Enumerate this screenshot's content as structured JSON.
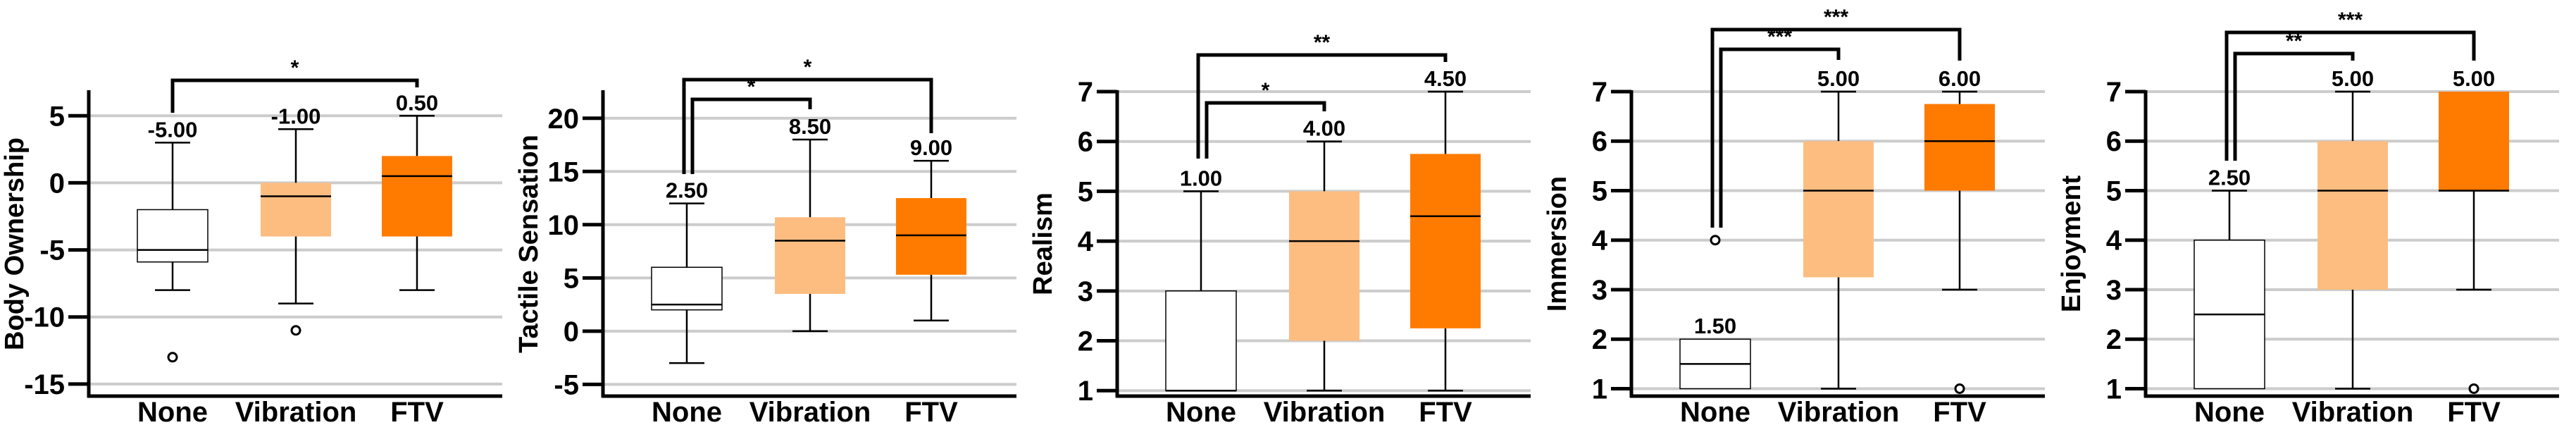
{
  "colors": {
    "None": "#ffffff",
    "Vibration": "#fdbd81",
    "FTV": "#ff7b00",
    "grid": "#cccccc",
    "axis": "#000000"
  },
  "chart_data": [
    {
      "type": "box",
      "ylabel": "Body Ownership",
      "categories": [
        "None",
        "Vibration",
        "FTV"
      ],
      "ylim": [
        -15.9,
        6.8
      ],
      "yticks": [
        5,
        0,
        -5,
        -10,
        -15
      ],
      "grid": true,
      "boxes": [
        {
          "category": "None",
          "whisker_low": -8,
          "q1": -5.9,
          "median": -5,
          "q3": -2,
          "whisker_high": 3,
          "outliers": [
            -13
          ],
          "median_label": "-5.00"
        },
        {
          "category": "Vibration",
          "whisker_low": -9,
          "q1": -4,
          "median": -1,
          "q3": 0,
          "whisker_high": 4,
          "outliers": [
            -11
          ],
          "median_label": "-1.00"
        },
        {
          "category": "FTV",
          "whisker_low": -8,
          "q1": -4,
          "median": 0.5,
          "q3": 2,
          "whisker_high": 5,
          "outliers": [],
          "median_label": "0.50"
        }
      ],
      "significance": [
        {
          "from": "None",
          "to": "FTV",
          "label": "*"
        }
      ]
    },
    {
      "type": "box",
      "ylabel": "Tactile Sensation",
      "categories": [
        "None",
        "Vibration",
        "FTV"
      ],
      "ylim": [
        -6.1,
        22.5
      ],
      "yticks": [
        20,
        15,
        10,
        5,
        0,
        -5
      ],
      "grid": true,
      "boxes": [
        {
          "category": "None",
          "whisker_low": -3,
          "q1": 2,
          "median": 2.5,
          "q3": 6,
          "whisker_high": 12,
          "outliers": [],
          "median_label": "2.50"
        },
        {
          "category": "Vibration",
          "whisker_low": 0,
          "q1": 3.5,
          "median": 8.5,
          "q3": 10.7,
          "whisker_high": 18,
          "outliers": [],
          "median_label": "8.50"
        },
        {
          "category": "FTV",
          "whisker_low": 1,
          "q1": 5.3,
          "median": 9,
          "q3": 12.5,
          "whisker_high": 16,
          "outliers": [],
          "median_label": "9.00"
        }
      ],
      "significance": [
        {
          "from": "None",
          "to": "Vibration",
          "label": "*"
        },
        {
          "from": "None",
          "to": "FTV",
          "label": "*"
        }
      ]
    },
    {
      "type": "box",
      "ylabel": "Realism",
      "categories": [
        "None",
        "Vibration",
        "FTV"
      ],
      "ylim": [
        0.89,
        7.0
      ],
      "yticks": [
        7,
        6,
        5,
        4,
        3,
        2,
        1
      ],
      "grid": true,
      "boxes": [
        {
          "category": "None",
          "whisker_low": 1,
          "q1": 1,
          "median": 1,
          "q3": 3,
          "whisker_high": 5,
          "outliers": [],
          "median_label": "1.00"
        },
        {
          "category": "Vibration",
          "whisker_low": 1,
          "q1": 2,
          "median": 4,
          "q3": 5,
          "whisker_high": 6,
          "outliers": [],
          "median_label": "4.00"
        },
        {
          "category": "FTV",
          "whisker_low": 1,
          "q1": 2.25,
          "median": 4.5,
          "q3": 5.75,
          "whisker_high": 7,
          "outliers": [],
          "median_label": "4.50"
        }
      ],
      "significance": [
        {
          "from": "None",
          "to": "Vibration",
          "label": "*"
        },
        {
          "from": "None",
          "to": "FTV",
          "label": "**"
        }
      ]
    },
    {
      "type": "box",
      "ylabel": "Immersion",
      "categories": [
        "None",
        "Vibration",
        "FTV"
      ],
      "ylim": [
        0.85,
        7.0
      ],
      "yticks": [
        7,
        6,
        5,
        4,
        3,
        2,
        1
      ],
      "grid": true,
      "boxes": [
        {
          "category": "None",
          "whisker_low": 1,
          "q1": 1,
          "median": 1.5,
          "q3": 2,
          "whisker_high": 2,
          "outliers": [
            4
          ],
          "median_label": "1.50"
        },
        {
          "category": "Vibration",
          "whisker_low": 1,
          "q1": 3.25,
          "median": 5,
          "q3": 6,
          "whisker_high": 7,
          "outliers": [],
          "median_label": "5.00"
        },
        {
          "category": "FTV",
          "whisker_low": 3,
          "q1": 5,
          "median": 6,
          "q3": 6.75,
          "whisker_high": 7,
          "outliers": [
            1
          ],
          "median_label": "6.00"
        }
      ],
      "significance": [
        {
          "from": "None",
          "to": "Vibration",
          "label": "***"
        },
        {
          "from": "None",
          "to": "FTV",
          "label": "***"
        }
      ]
    },
    {
      "type": "box",
      "ylabel": "Enjoyment",
      "categories": [
        "None",
        "Vibration",
        "FTV"
      ],
      "ylim": [
        0.85,
        7.0
      ],
      "yticks": [
        7,
        6,
        5,
        4,
        3,
        2,
        1
      ],
      "grid": true,
      "boxes": [
        {
          "category": "None",
          "whisker_low": 1,
          "q1": 1,
          "median": 2.5,
          "q3": 4,
          "whisker_high": 5,
          "outliers": [],
          "median_label": "2.50"
        },
        {
          "category": "Vibration",
          "whisker_low": 1,
          "q1": 3,
          "median": 5,
          "q3": 6,
          "whisker_high": 7,
          "outliers": [],
          "median_label": "5.00"
        },
        {
          "category": "FTV",
          "whisker_low": 3,
          "q1": 5,
          "median": 5,
          "q3": 7,
          "whisker_high": 7,
          "outliers": [
            1
          ],
          "median_label": "5.00"
        }
      ],
      "significance": [
        {
          "from": "None",
          "to": "Vibration",
          "label": "**"
        },
        {
          "from": "None",
          "to": "FTV",
          "label": "***"
        }
      ]
    }
  ]
}
